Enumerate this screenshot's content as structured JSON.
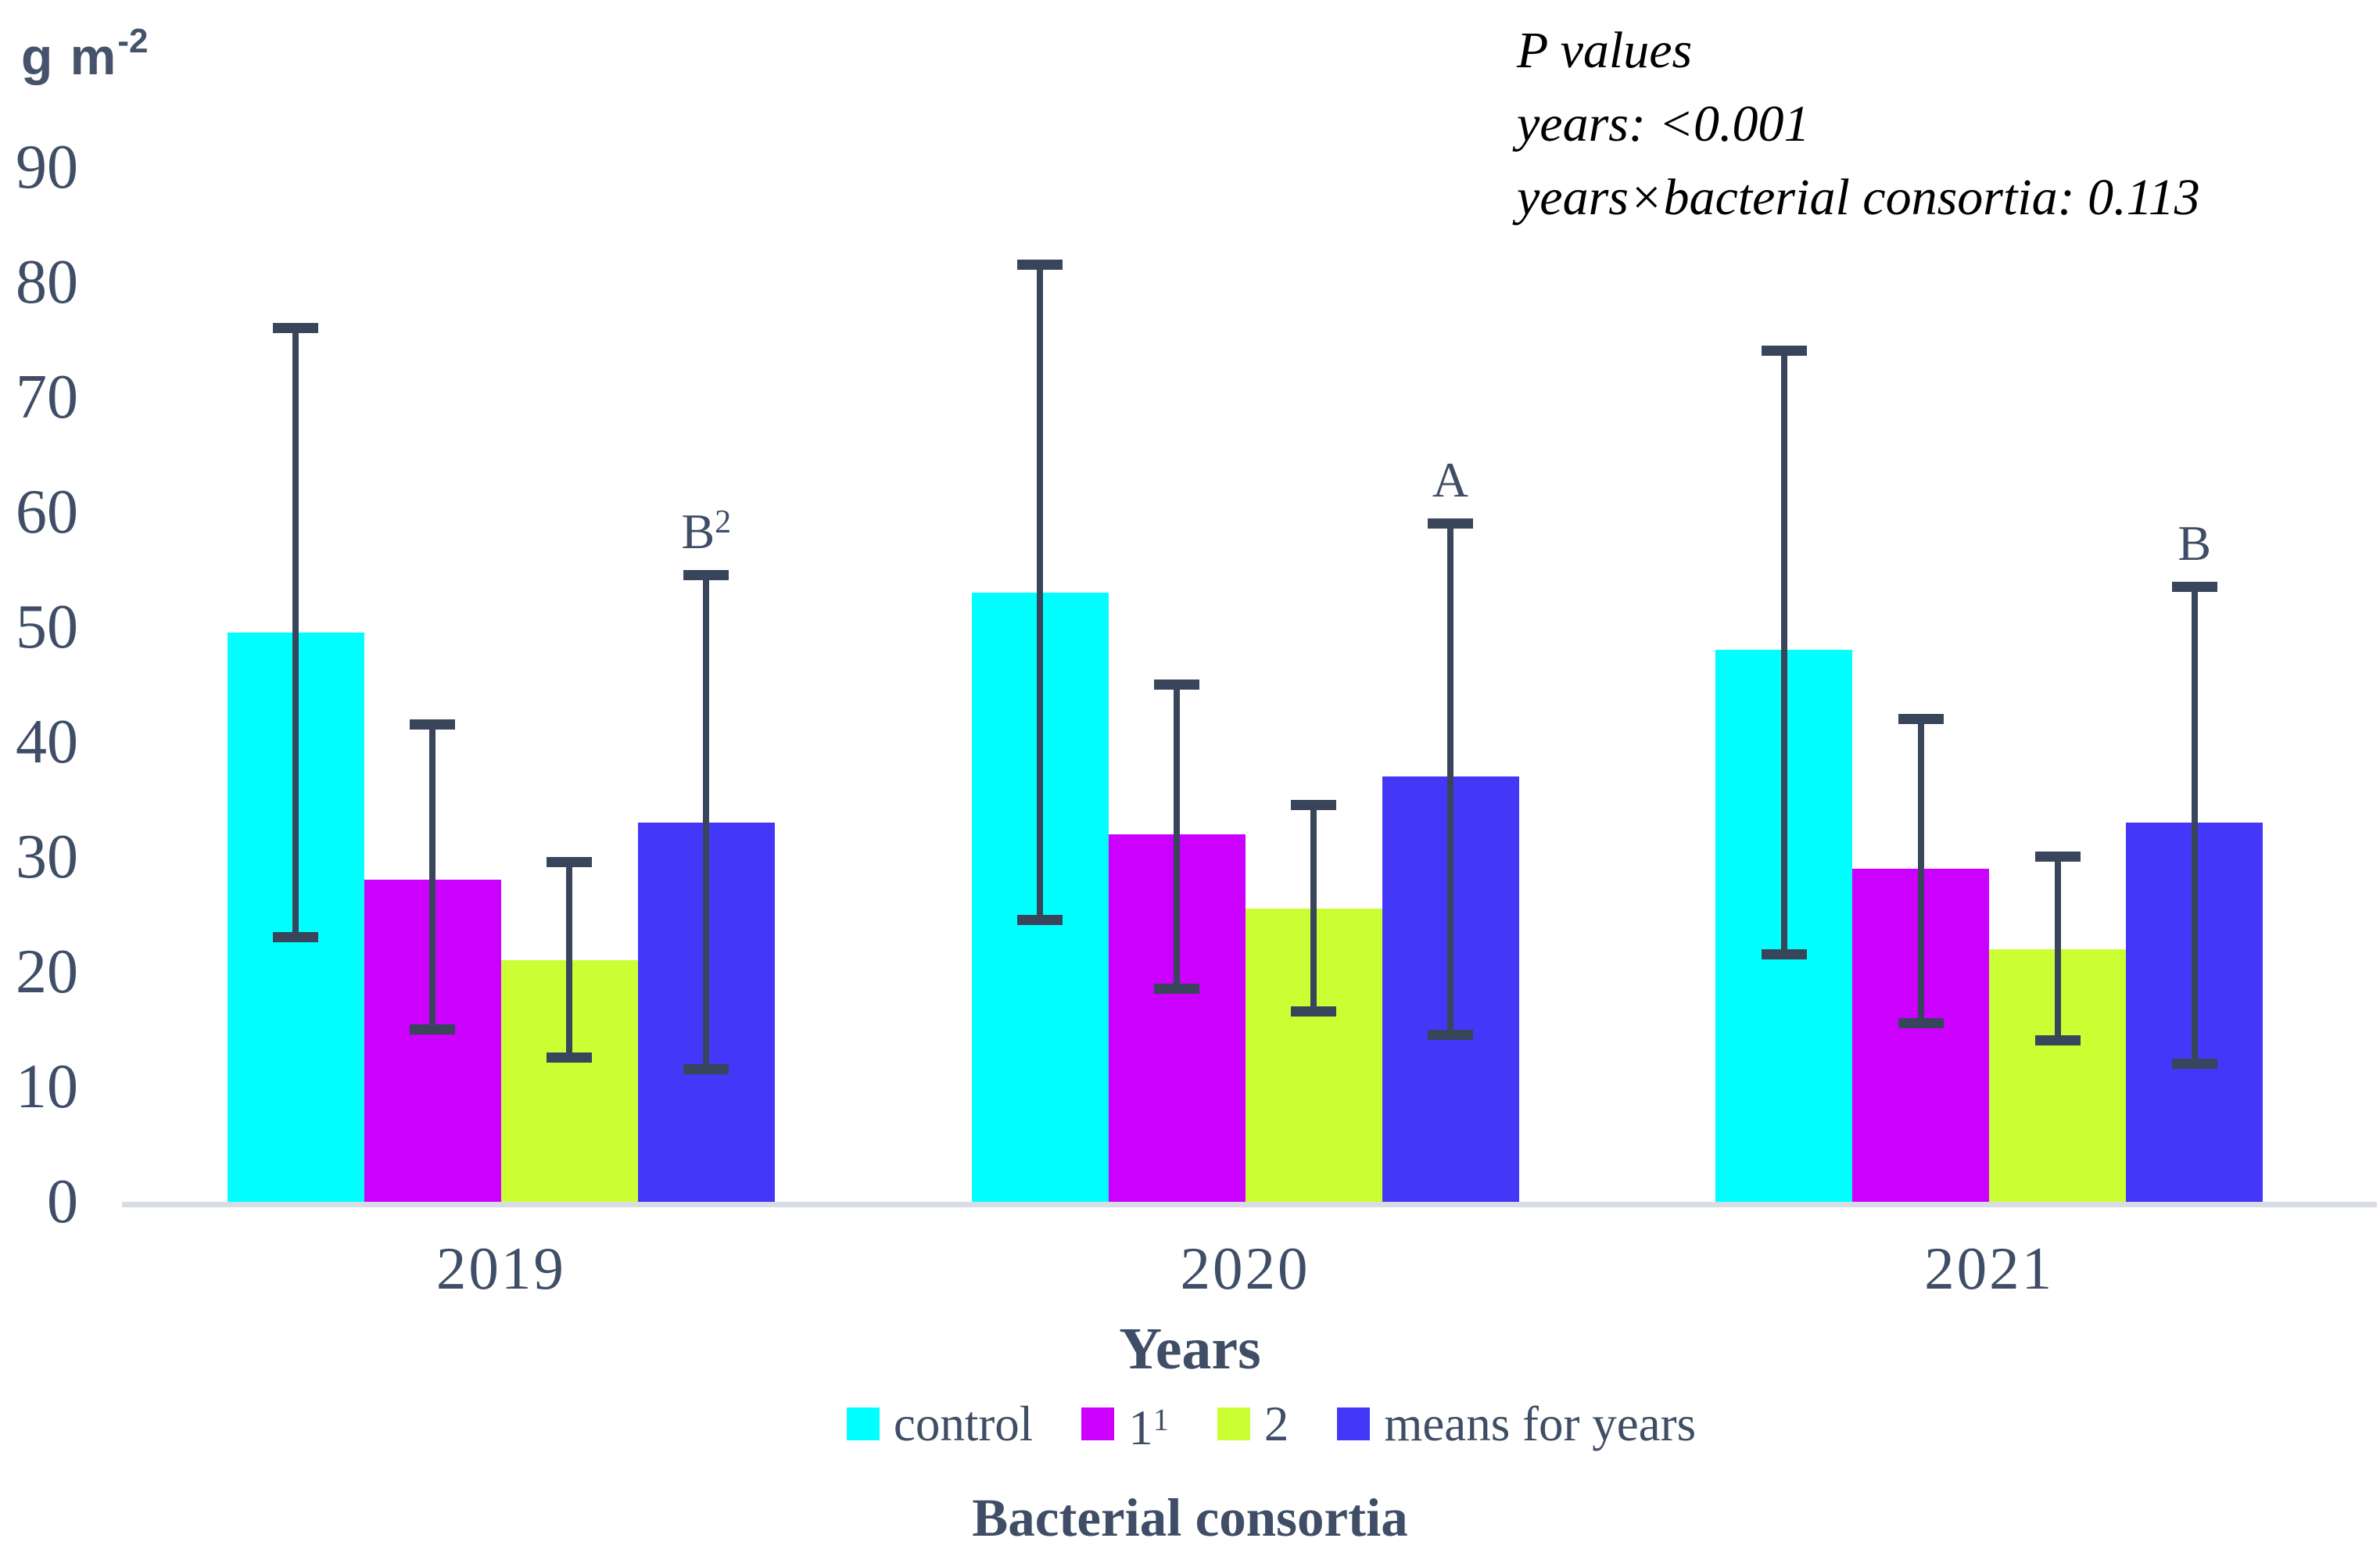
{
  "unit": {
    "base": "g m",
    "sup": "-2"
  },
  "stats": {
    "title": "P values",
    "years_line": "years: <0.001",
    "interaction_line": "years×bacterial consortia: 0.113"
  },
  "axis_titles": {
    "x": "Years",
    "group": "Bacterial consortia"
  },
  "colors": {
    "text": "#3F4E66",
    "error_bar": "#39455A",
    "axis_line": "#D8DCE4"
  },
  "chart_data": {
    "type": "bar",
    "title": "",
    "ylabel": "g m⁻²",
    "xlabel": "Years",
    "group_axis_label": "Bacterial consortia",
    "ylim": [
      0,
      90
    ],
    "yticks": [
      0,
      10,
      20,
      30,
      40,
      50,
      60,
      70,
      80,
      90
    ],
    "grid": false,
    "legend_position": "bottom",
    "stats_note": [
      "P values",
      "years: <0.001",
      "years×bacterial consortia: 0.113"
    ],
    "categories": [
      "2019",
      "2020",
      "2021"
    ],
    "series": [
      {
        "name": "control",
        "name_sup": "",
        "color": "#00FFFF",
        "values": [
          49.5,
          53,
          48
        ],
        "error_low": [
          23,
          24.5,
          21.5
        ],
        "error_high": [
          76,
          81.5,
          74
        ],
        "annotations": [
          null,
          null,
          null
        ]
      },
      {
        "name": "1",
        "name_sup": "1",
        "color": "#CC00FF",
        "values": [
          28,
          32,
          29
        ],
        "error_low": [
          15,
          18.5,
          15.5
        ],
        "error_high": [
          41.5,
          45,
          42
        ],
        "annotations": [
          null,
          null,
          null
        ]
      },
      {
        "name": "2",
        "name_sup": "",
        "color": "#CCFF33",
        "values": [
          21,
          25.5,
          22
        ],
        "error_low": [
          12.5,
          16.5,
          14
        ],
        "error_high": [
          29.5,
          34.5,
          30
        ],
        "annotations": [
          null,
          null,
          null
        ]
      },
      {
        "name": "means for years",
        "name_sup": "",
        "color": "#4338F8",
        "values": [
          33,
          37,
          33
        ],
        "error_low": [
          11.5,
          14.5,
          12
        ],
        "error_high": [
          54.5,
          59,
          53.5
        ],
        "annotations": [
          {
            "base": "B",
            "sup": "2"
          },
          {
            "base": "A",
            "sup": ""
          },
          {
            "base": "B",
            "sup": ""
          }
        ]
      }
    ]
  }
}
